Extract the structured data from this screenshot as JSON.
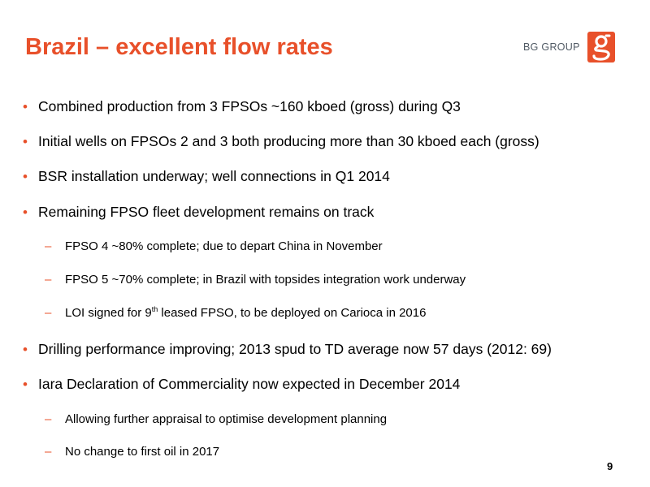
{
  "slide": {
    "title": "Brazil – excellent flow rates",
    "page_number": "9",
    "logo": {
      "text": "BG GROUP",
      "mark_icon": "bg-group-logo-icon",
      "brand_color": "#e8502a"
    },
    "bullets": [
      {
        "level": 1,
        "marker": "•",
        "text": "Combined production from 3 FPSOs ~160 kboed (gross) during Q3"
      },
      {
        "level": 1,
        "marker": "•",
        "text": "Initial wells on FPSOs 2 and 3 both producing more than 30 kboed each (gross)"
      },
      {
        "level": 1,
        "marker": "•",
        "text": "BSR installation underway; well connections in Q1 2014"
      },
      {
        "level": 1,
        "marker": "•",
        "text": "Remaining FPSO fleet development remains on track"
      },
      {
        "level": 2,
        "marker": "–",
        "text": "FPSO 4 ~80% complete; due to depart China in November"
      },
      {
        "level": 2,
        "marker": "–",
        "text": "FPSO 5 ~70% complete; in Brazil with topsides integration work underway"
      },
      {
        "level": 2,
        "marker": "–",
        "text_before": "LOI signed for 9",
        "text_sup": "th",
        "text_after": " leased FPSO, to be deployed on Carioca in 2016"
      },
      {
        "level": 1,
        "marker": "•",
        "text": "Drilling performance improving; 2013 spud to TD average now 57 days (2012: 69)"
      },
      {
        "level": 1,
        "marker": "•",
        "text": "Iara Declaration of Commerciality now expected in December 2014"
      },
      {
        "level": 2,
        "marker": "–",
        "text": "Allowing further appraisal to optimise development planning"
      },
      {
        "level": 2,
        "marker": "–",
        "text": "No change to first oil in 2017"
      }
    ]
  }
}
